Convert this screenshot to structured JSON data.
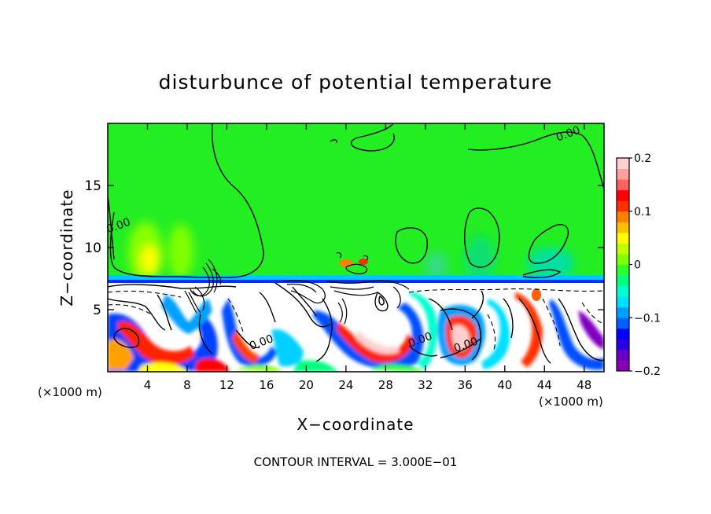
{
  "chart_data": {
    "type": "heatmap",
    "title": "disturbunce of potential temperature",
    "xlabel": "X−coordinate",
    "ylabel": "Z−coordinate",
    "x_unit": "(×1000 m)",
    "x_unit_right": "(×1000 m)",
    "footer": "CONTOUR INTERVAL = 3.000E−01",
    "xlim": [
      0,
      50
    ],
    "ylim": [
      0,
      20
    ],
    "xticks": [
      4,
      8,
      12,
      16,
      20,
      24,
      28,
      32,
      36,
      40,
      44,
      48
    ],
    "yticks": [
      5,
      10,
      15
    ],
    "colorbar": {
      "vmin": -0.2,
      "vmax": 0.2,
      "ticks": [
        {
          "value": 0.2,
          "label": "0.2"
        },
        {
          "value": 0.1,
          "label": "0.1"
        },
        {
          "value": 0.0,
          "label": "0"
        },
        {
          "value": -0.1,
          "label": "−0.1"
        },
        {
          "value": -0.2,
          "label": "−0.2"
        }
      ],
      "colors": [
        "#8a00b0",
        "#6a00c8",
        "#2a00e0",
        "#0000ff",
        "#0060ff",
        "#00a0ff",
        "#00e0ff",
        "#00ffd0",
        "#00ff80",
        "#30ff30",
        "#80ff00",
        "#c0ff00",
        "#ffff00",
        "#ffc000",
        "#ff8000",
        "#ff3000",
        "#ff0000",
        "#ff6060",
        "#ffa0a0",
        "#ffd0d0"
      ]
    },
    "contour_labels": [
      {
        "x": 46.5,
        "z": 18.9,
        "text": "0.00"
      },
      {
        "x": 1.2,
        "z": 11.5,
        "text": "0.00"
      },
      {
        "x": 15.6,
        "z": 2.1,
        "text": "0.00"
      },
      {
        "x": 31.6,
        "z": 2.3,
        "text": "0.00"
      },
      {
        "x": 36.2,
        "z": 1.9,
        "text": "0.00"
      }
    ]
  }
}
